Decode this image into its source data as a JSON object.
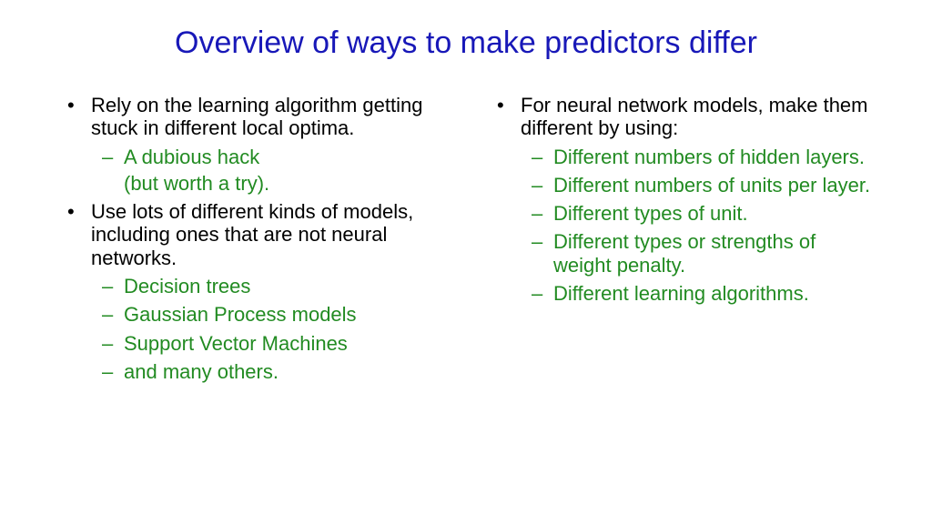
{
  "title": "Overview of ways to make predictors differ",
  "colors": {
    "title": "#1818b8",
    "body": "#000000",
    "sub": "#228b22",
    "background": "#ffffff"
  },
  "left": {
    "items": [
      {
        "text": "Rely on the learning algorithm getting stuck in different local optima.",
        "sub": [
          {
            "text": "A dubious hack",
            "extra": "(but worth a try)."
          }
        ]
      },
      {
        "text": "Use lots of different kinds of models, including ones that are not neural networks.",
        "sub": [
          {
            "text": "Decision trees"
          },
          {
            "text": "Gaussian Process models"
          },
          {
            "text": "Support Vector Machines"
          },
          {
            "text": "and many others."
          }
        ]
      }
    ]
  },
  "right": {
    "items": [
      {
        "text": "For neural network models, make them different by using:",
        "sub": [
          {
            "text": "Different numbers of hidden layers."
          },
          {
            "text": "Different numbers of units per layer."
          },
          {
            "text": "Different types of unit."
          },
          {
            "text": "Different types or strengths of weight penalty."
          },
          {
            "text": "Different learning algorithms."
          }
        ]
      }
    ]
  }
}
